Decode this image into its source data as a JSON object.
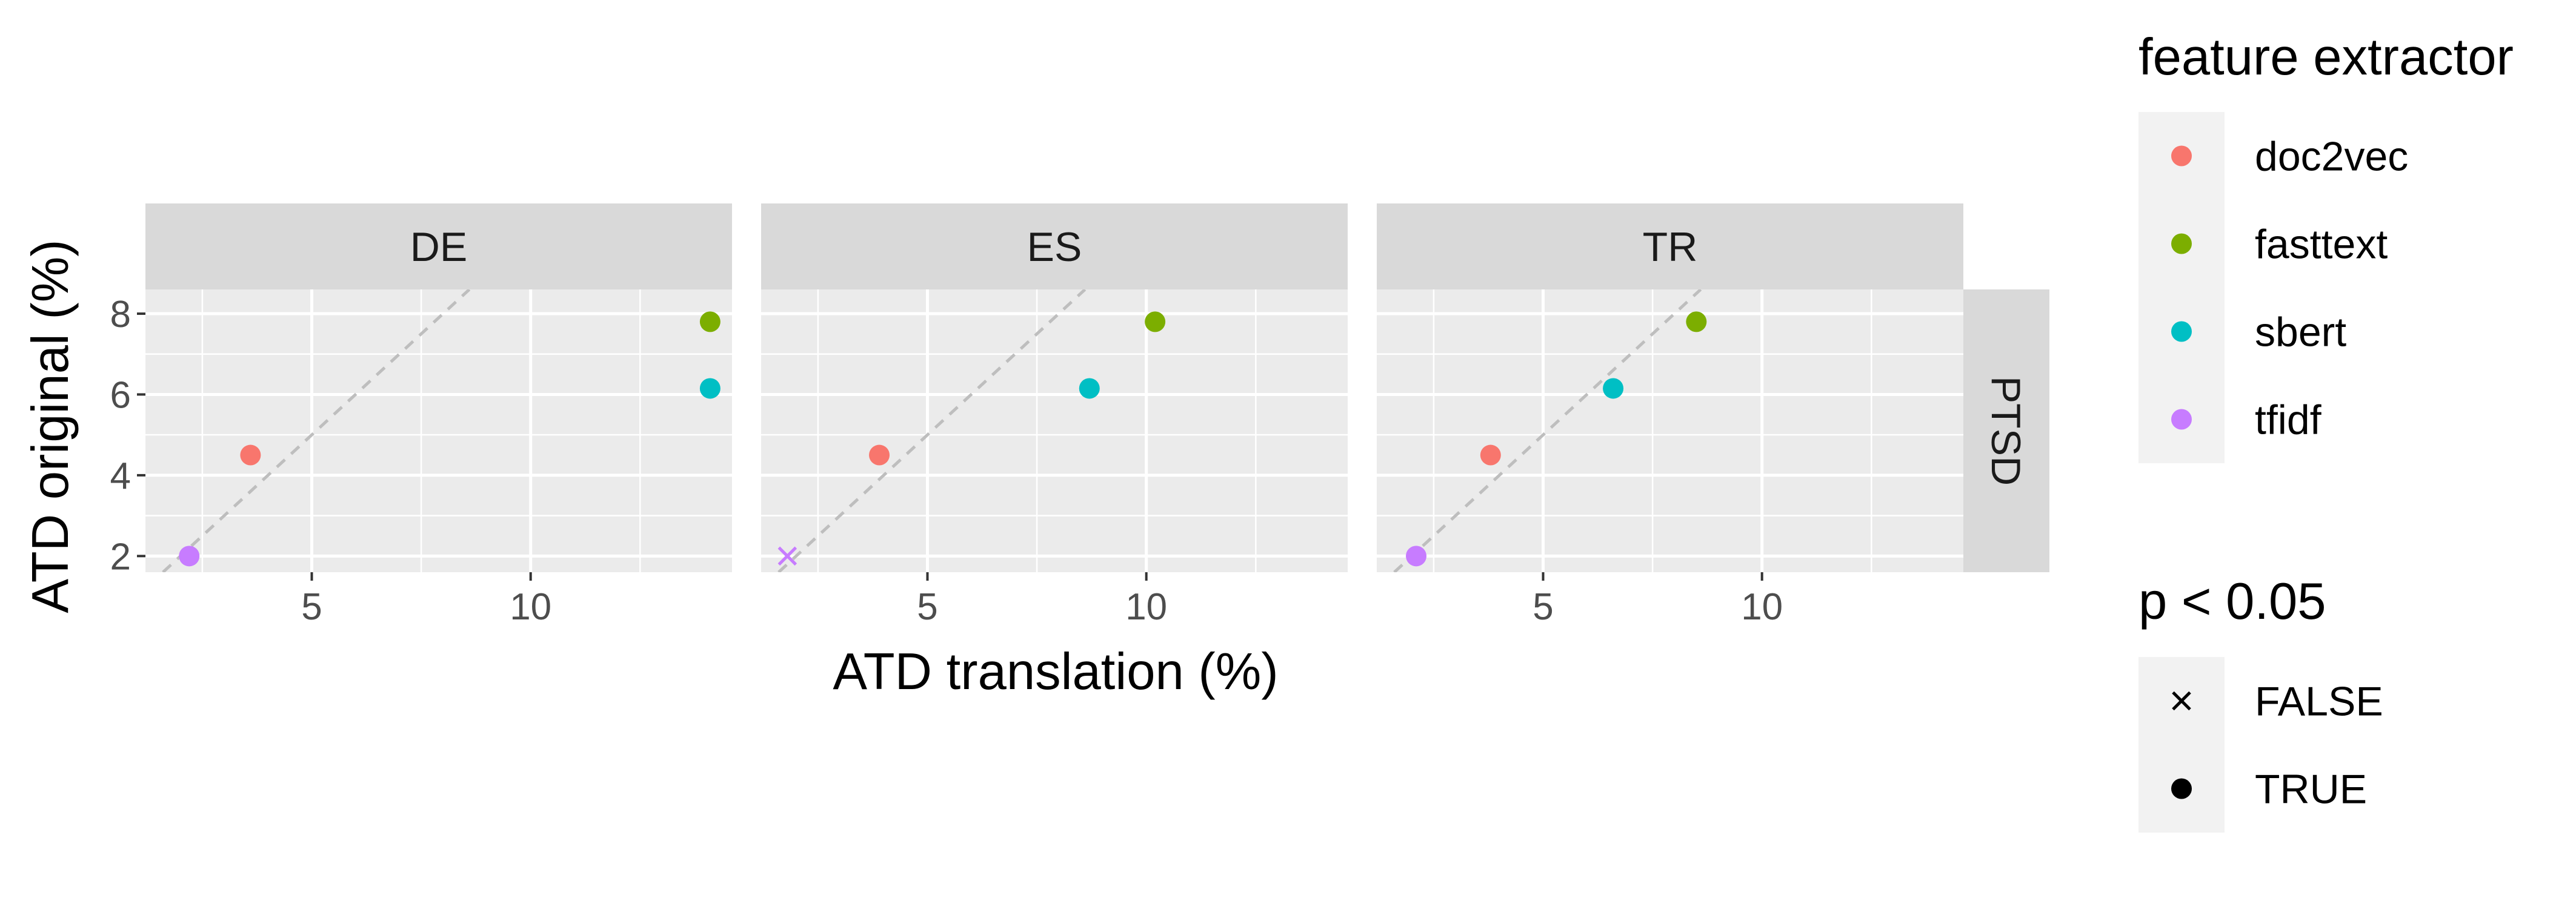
{
  "chart_data": {
    "type": "scatter",
    "xlabel": "ATD translation (%)",
    "ylabel": "ATD original (%)",
    "xlim": [
      1.2,
      14.6
    ],
    "ylim": [
      1.6,
      8.6
    ],
    "x_ticks": [
      5,
      10
    ],
    "y_ticks": [
      2,
      4,
      6,
      8
    ],
    "x_tick_labels": [
      "5",
      "10"
    ],
    "y_tick_labels": [
      "2",
      "4",
      "6",
      "8"
    ],
    "grid": true,
    "reference_line": "y = x (dashed)",
    "row_facet": "PTSD",
    "facets": [
      {
        "label": "DE",
        "points": [
          {
            "series": "doc2vec",
            "x": 3.6,
            "y": 4.5,
            "significant": true
          },
          {
            "series": "fasttext",
            "x": 14.1,
            "y": 7.8,
            "significant": true
          },
          {
            "series": "sbert",
            "x": 14.1,
            "y": 6.15,
            "significant": true
          },
          {
            "series": "tfidf",
            "x": 2.2,
            "y": 2.0,
            "significant": true
          }
        ]
      },
      {
        "label": "ES",
        "points": [
          {
            "series": "doc2vec",
            "x": 3.9,
            "y": 4.5,
            "significant": true
          },
          {
            "series": "fasttext",
            "x": 10.2,
            "y": 7.8,
            "significant": true
          },
          {
            "series": "sbert",
            "x": 8.7,
            "y": 6.15,
            "significant": true
          },
          {
            "series": "tfidf",
            "x": 1.8,
            "y": 2.0,
            "significant": false
          }
        ]
      },
      {
        "label": "TR",
        "points": [
          {
            "series": "doc2vec",
            "x": 3.8,
            "y": 4.5,
            "significant": true
          },
          {
            "series": "fasttext",
            "x": 8.5,
            "y": 7.8,
            "significant": true
          },
          {
            "series": "sbert",
            "x": 6.6,
            "y": 6.15,
            "significant": true
          },
          {
            "series": "tfidf",
            "x": 2.1,
            "y": 2.0,
            "significant": true
          }
        ]
      }
    ],
    "legend": {
      "color_title": "feature extractor",
      "color_items": [
        {
          "label": "doc2vec",
          "color": "#F8766D"
        },
        {
          "label": "fasttext",
          "color": "#7CAE00"
        },
        {
          "label": "sbert",
          "color": "#00BFC4"
        },
        {
          "label": "tfidf",
          "color": "#C77CFF"
        }
      ],
      "shape_title": "p < 0.05",
      "shape_items": [
        {
          "label": "FALSE",
          "shape": "cross"
        },
        {
          "label": "TRUE",
          "shape": "circle"
        }
      ],
      "placement": "right"
    },
    "colors": {
      "panel_background": "#EBEBEB",
      "strip_background": "#D9D9D9",
      "grid": "#FFFFFF",
      "reference_line": "#BEBEBE"
    }
  }
}
